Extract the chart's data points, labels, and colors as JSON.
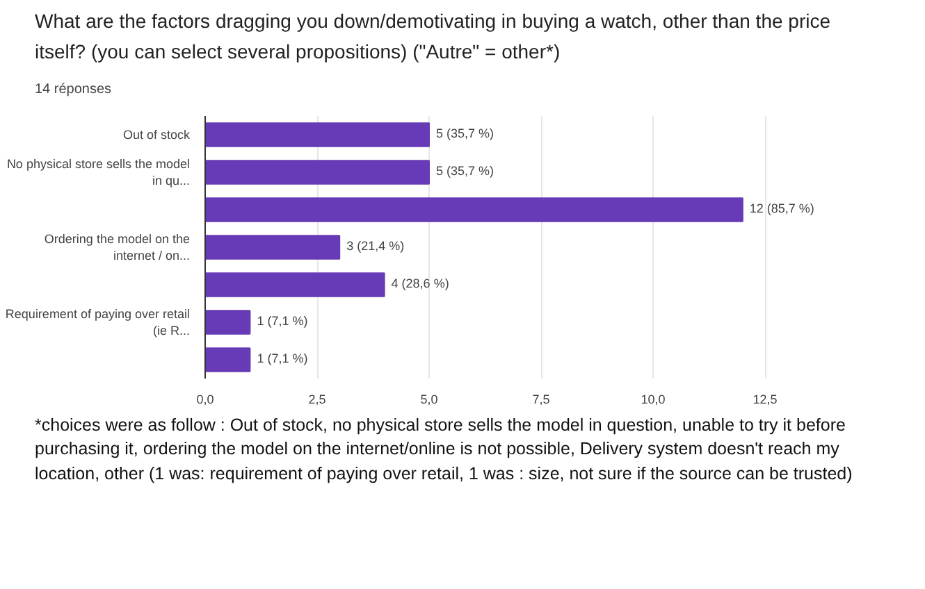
{
  "chart_data": {
    "type": "bar",
    "orientation": "horizontal",
    "title": "What are the factors dragging you down/demotivating in buying a watch, other than the price itself? (you can select several propositions) (\"Autre\" = other*)",
    "subtitle": "14 réponses",
    "categories": [
      "Out of stock",
      "No physical store sells the model\nin qu...",
      null,
      "Ordering the model on the\ninternet / on...",
      null,
      "Requirement of paying over retail\n(ie R...",
      null
    ],
    "values": [
      5,
      5,
      12,
      3,
      4,
      1,
      1
    ],
    "value_labels": [
      "5 (35,7 %)",
      "5 (35,7 %)",
      "12 (85,7 %)",
      "3 (21,4 %)",
      "4 (28,6 %)",
      "1 (7,1 %)",
      "1 (7,1 %)"
    ],
    "color": "#673ab7",
    "xlim": [
      0,
      12.5
    ],
    "xticks": [
      {
        "value": 0,
        "label": "0,0"
      },
      {
        "value": 2.5,
        "label": "2,5"
      },
      {
        "value": 5,
        "label": "5,0"
      },
      {
        "value": 7.5,
        "label": "7,5"
      },
      {
        "value": 10,
        "label": "10,0"
      },
      {
        "value": 12.5,
        "label": "12,5"
      }
    ],
    "grid": "x",
    "annotations": [
      "*choices were as follow : Out of stock, no physical store sells the model in question, unable to try it before purchasing it, ordering the model on the internet/online is not possible, Delivery system doesn't reach my location, other (1 was: requirement of paying over retail, 1 was : size, not sure if the source can be trusted)"
    ]
  }
}
